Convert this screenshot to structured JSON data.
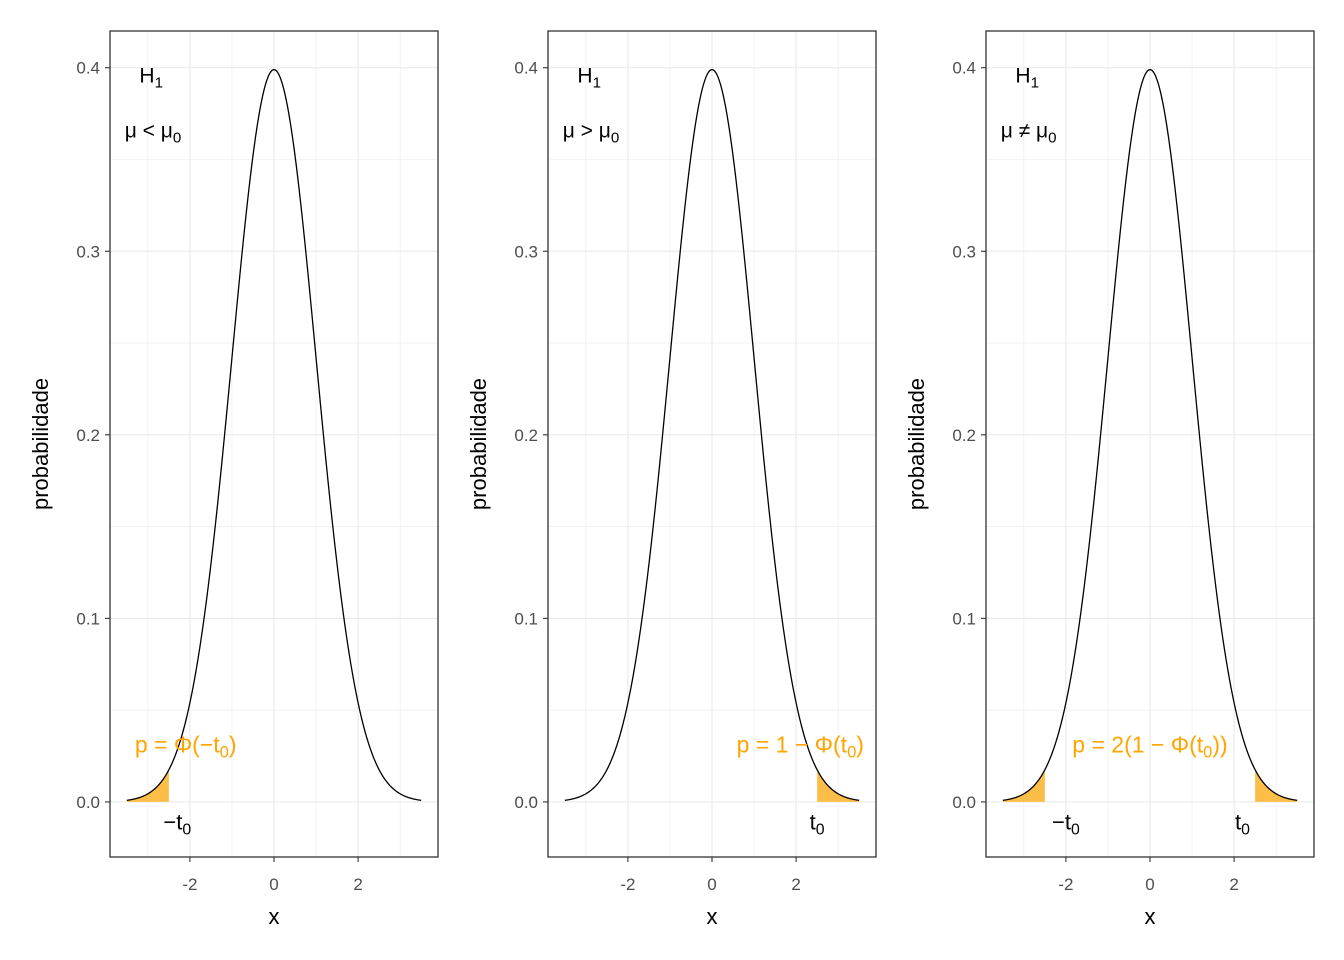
{
  "chart_data": [
    {
      "type": "area",
      "xlabel": "x",
      "ylabel": "probabilidade",
      "xlim": [
        -3.9,
        3.9
      ],
      "ylim": [
        -0.03,
        0.42
      ],
      "x_ticks": [
        "-2",
        "0",
        "2"
      ],
      "x_tick_values": [
        -2,
        0,
        2
      ],
      "y_ticks": [
        "0.0",
        "0.1",
        "0.2",
        "0.3",
        "0.4"
      ],
      "y_tick_values": [
        0,
        0.1,
        0.2,
        0.3,
        0.4
      ],
      "grid": true,
      "curve": {
        "distribution": "normal",
        "mean": 0,
        "sd": 1,
        "x_range": [
          -3.5,
          3.5
        ]
      },
      "shaded_regions": [
        [
          -3.5,
          -2.5
        ]
      ],
      "hypothesis": {
        "title": "H",
        "title_sub": "1",
        "relation": "μ < μ",
        "relation_sub": "0"
      },
      "p_annotation": {
        "text": "p = Φ(−t",
        "sub": "0",
        "close": ")",
        "x": -2.1,
        "y": 0.027
      },
      "t_labels": [
        {
          "text": "−t",
          "sub": "0",
          "x": -2.3
        }
      ]
    },
    {
      "type": "area",
      "xlabel": "x",
      "ylabel": "probabilidade",
      "xlim": [
        -3.9,
        3.9
      ],
      "ylim": [
        -0.03,
        0.42
      ],
      "x_ticks": [
        "-2",
        "0",
        "2"
      ],
      "x_tick_values": [
        -2,
        0,
        2
      ],
      "y_ticks": [
        "0.0",
        "0.1",
        "0.2",
        "0.3",
        "0.4"
      ],
      "y_tick_values": [
        0,
        0.1,
        0.2,
        0.3,
        0.4
      ],
      "grid": true,
      "curve": {
        "distribution": "normal",
        "mean": 0,
        "sd": 1,
        "x_range": [
          -3.5,
          3.5
        ]
      },
      "shaded_regions": [
        [
          2.5,
          3.5
        ]
      ],
      "hypothesis": {
        "title": "H",
        "title_sub": "1",
        "relation": "μ > μ",
        "relation_sub": "0"
      },
      "p_annotation": {
        "text": "p = 1 − Φ(t",
        "sub": "0",
        "close": ")",
        "x": 2.1,
        "y": 0.027
      },
      "t_labels": [
        {
          "text": "t",
          "sub": "0",
          "x": 2.5
        }
      ]
    },
    {
      "type": "area",
      "xlabel": "x",
      "ylabel": "probabilidade",
      "xlim": [
        -3.9,
        3.9
      ],
      "ylim": [
        -0.03,
        0.42
      ],
      "x_ticks": [
        "-2",
        "0",
        "2"
      ],
      "x_tick_values": [
        -2,
        0,
        2
      ],
      "y_ticks": [
        "0.0",
        "0.1",
        "0.2",
        "0.3",
        "0.4"
      ],
      "y_tick_values": [
        0,
        0.1,
        0.2,
        0.3,
        0.4
      ],
      "grid": true,
      "curve": {
        "distribution": "normal",
        "mean": 0,
        "sd": 1,
        "x_range": [
          -3.5,
          3.5
        ]
      },
      "shaded_regions": [
        [
          -3.5,
          -2.5
        ],
        [
          2.5,
          3.5
        ]
      ],
      "hypothesis": {
        "title": "H",
        "title_sub": "1",
        "relation": "μ ≠ μ",
        "relation_sub": "0"
      },
      "p_annotation": {
        "text": "p = 2(1 − Φ(t",
        "sub": "0",
        "close": "))",
        "x": 0,
        "y": 0.027
      },
      "t_labels": [
        {
          "text": "−t",
          "sub": "0",
          "x": -2.0
        },
        {
          "text": "t",
          "sub": "0",
          "x": 2.2
        }
      ]
    }
  ],
  "colors": {
    "shade": "#FDBE48",
    "annotation": "#FFA500",
    "curve": "#000000",
    "grid": "#EBEBEB",
    "border": "#333333"
  }
}
